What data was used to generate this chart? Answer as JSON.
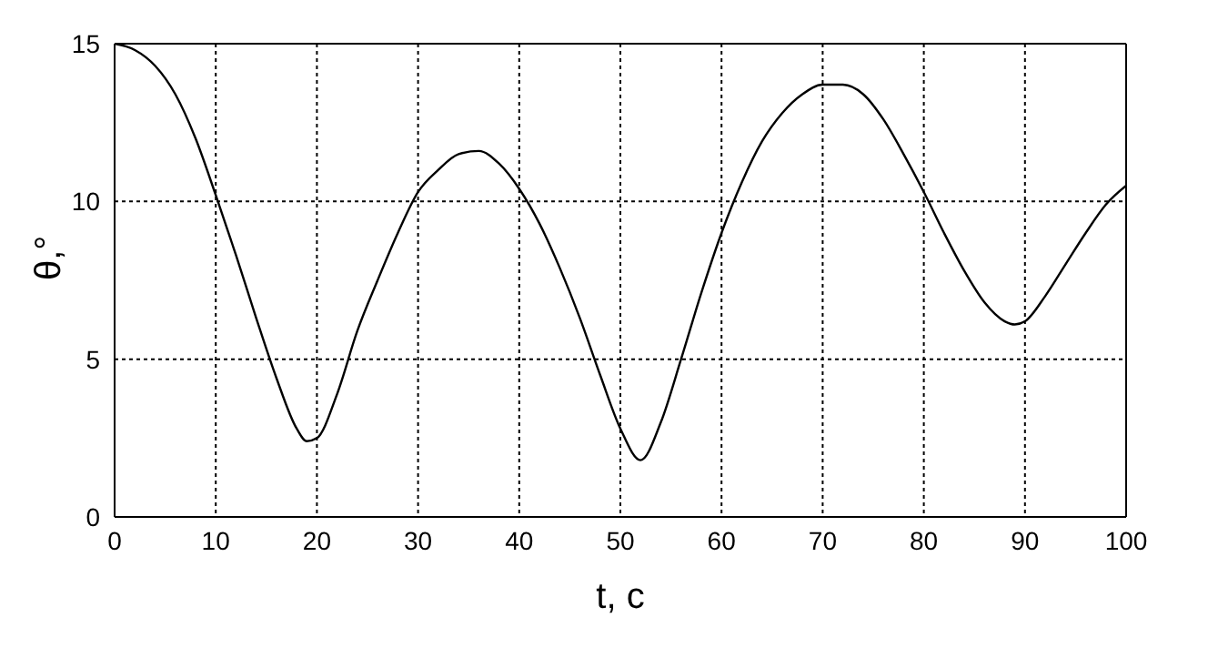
{
  "chart_data": {
    "type": "line",
    "xlabel": "t, c",
    "ylabel": "θ,°",
    "xlim": [
      0,
      100
    ],
    "ylim": [
      0,
      15
    ],
    "xticks": [
      0,
      10,
      20,
      30,
      40,
      50,
      60,
      70,
      80,
      90,
      100
    ],
    "yticks": [
      0,
      5,
      10,
      15
    ],
    "grid": true,
    "line_style": "solid",
    "marker": "none",
    "x": [
      0,
      2,
      4,
      6,
      8,
      10,
      12,
      14,
      16,
      18,
      19,
      20,
      22,
      24,
      26,
      28,
      30,
      32,
      34,
      36,
      38,
      40,
      42,
      44,
      46,
      48,
      50,
      52,
      54,
      56,
      58,
      60,
      62,
      64,
      66,
      68,
      70,
      72,
      74,
      76,
      78,
      80,
      82,
      84,
      86,
      88,
      89,
      90,
      92,
      94,
      96,
      98,
      100
    ],
    "series": [
      {
        "color": "#000000",
        "values": [
          15,
          14.8,
          14.3,
          13.4,
          12.0,
          10.2,
          8.3,
          6.3,
          4.4,
          2.8,
          2.4,
          2.5,
          3.9,
          5.9,
          7.5,
          9.0,
          10.3,
          11.0,
          11.5,
          11.6,
          11.2,
          10.4,
          9.3,
          7.9,
          6.3,
          4.5,
          2.8,
          1.8,
          3.0,
          5.0,
          7.1,
          9.0,
          10.6,
          11.9,
          12.8,
          13.4,
          13.7,
          13.7,
          13.4,
          12.6,
          11.5,
          10.3,
          9.0,
          7.8,
          6.8,
          6.2,
          6.1,
          6.2,
          7.0,
          8.0,
          9.0,
          9.9,
          10.5
        ]
      }
    ]
  }
}
